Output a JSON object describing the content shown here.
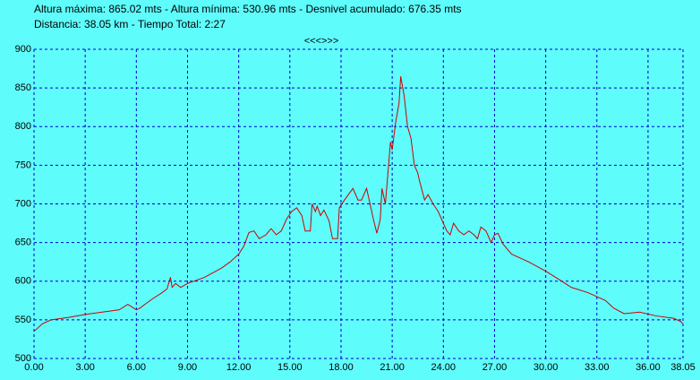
{
  "chart_data": {
    "type": "line",
    "title": "Altura máxima: 865.02 mts - Altura mínima: 530.96 mts - Desnivel acumulado: 676.35 mts",
    "subtitle": "Distancia: 38.05 km - Tiempo Total: 2:27",
    "annotation": "<<<>>>",
    "x": [
      0,
      0.5,
      1,
      2,
      3,
      4,
      5,
      5.5,
      6,
      6.2,
      6.5,
      7,
      7.5,
      7.8,
      8.0,
      8.1,
      8.3,
      8.6,
      9,
      10,
      11,
      11.5,
      12,
      12.3,
      12.6,
      12.9,
      13.2,
      13.6,
      13.9,
      14.2,
      14.5,
      14.8,
      15.1,
      15.4,
      15.7,
      15.9,
      16.2,
      16.3,
      16.5,
      16.6,
      16.8,
      17.0,
      17.3,
      17.5,
      17.8,
      17.9,
      18.2,
      18.7,
      19.0,
      19.2,
      19.5,
      19.7,
      19.9,
      20.1,
      20.3,
      20.4,
      20.6,
      20.9,
      21.0,
      21.2,
      21.4,
      21.5,
      21.7,
      21.9,
      22.1,
      22.3,
      22.5,
      22.6,
      22.9,
      23.1,
      23.4,
      23.7,
      24.0,
      24.2,
      24.4,
      24.6,
      24.9,
      25.2,
      25.5,
      25.8,
      26.0,
      26.2,
      26.5,
      26.8,
      27.0,
      27.2,
      27.5,
      28.0,
      29,
      30,
      30.8,
      31.5,
      32.5,
      33.5,
      34.0,
      34.6,
      35.5,
      36.5,
      37.5,
      37.9,
      38.05
    ],
    "values": [
      535,
      545,
      550,
      553,
      557,
      560,
      563,
      570,
      563,
      565,
      570,
      578,
      585,
      590,
      605,
      592,
      597,
      592,
      597,
      605,
      617,
      625,
      635,
      645,
      663,
      665,
      655,
      660,
      668,
      660,
      665,
      680,
      690,
      695,
      685,
      665,
      665,
      700,
      690,
      697,
      685,
      692,
      678,
      655,
      655,
      695,
      705,
      720,
      705,
      705,
      720,
      700,
      680,
      662,
      680,
      720,
      700,
      780,
      770,
      805,
      830,
      865,
      840,
      800,
      785,
      750,
      740,
      730,
      705,
      712,
      700,
      690,
      675,
      665,
      660,
      675,
      665,
      660,
      665,
      660,
      655,
      670,
      665,
      650,
      660,
      662,
      648,
      635,
      625,
      613,
      602,
      592,
      585,
      575,
      565,
      558,
      560,
      555,
      552,
      548,
      545
    ],
    "color": "#cc0000",
    "xlim": [
      0,
      38.05
    ],
    "xticks": [
      {
        "value": 0,
        "label": "0.00"
      },
      {
        "value": 3,
        "label": "3.00"
      },
      {
        "value": 6,
        "label": "6.00"
      },
      {
        "value": 9,
        "label": "9.00"
      },
      {
        "value": 12,
        "label": "12.00"
      },
      {
        "value": 15,
        "label": "15.00"
      },
      {
        "value": 18,
        "label": "18.00"
      },
      {
        "value": 21,
        "label": "21.00"
      },
      {
        "value": 24,
        "label": "24.00"
      },
      {
        "value": 27,
        "label": "27.00"
      },
      {
        "value": 30,
        "label": "30.00"
      },
      {
        "value": 33,
        "label": "33.00"
      },
      {
        "value": 36,
        "label": "36.00"
      },
      {
        "value": 38.05,
        "label": "38.05"
      }
    ],
    "ylim": [
      500,
      900
    ],
    "yticks": [
      500,
      550,
      600,
      650,
      700,
      750,
      800,
      850,
      900
    ],
    "grid": true
  }
}
